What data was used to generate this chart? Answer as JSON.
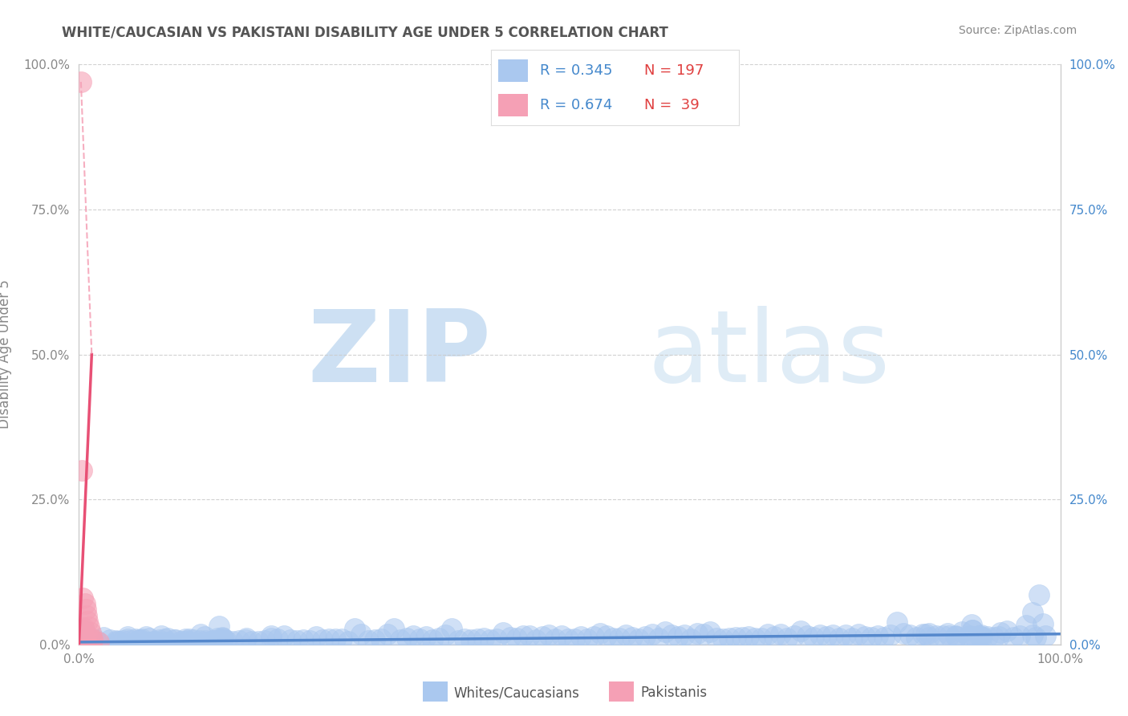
{
  "title": "WHITE/CAUCASIAN VS PAKISTANI DISABILITY AGE UNDER 5 CORRELATION CHART",
  "source": "Source: ZipAtlas.com",
  "ylabel": "Disability Age Under 5",
  "xlim": [
    0,
    1.0
  ],
  "ylim": [
    0,
    1.0
  ],
  "xticks": [
    0.0,
    1.0
  ],
  "yticks": [
    0.0,
    0.25,
    0.5,
    0.75,
    1.0
  ],
  "xtick_labels_bottom": [
    "0.0%",
    "100.0%"
  ],
  "ytick_labels_left": [
    "0.0%",
    "25.0%",
    "50.0%",
    "75.0%",
    "100.0%"
  ],
  "ytick_labels_right": [
    "0.0%",
    "25.0%",
    "50.0%",
    "75.0%",
    "100.0%"
  ],
  "white_R": 0.345,
  "white_N": 197,
  "pak_R": 0.674,
  "pak_N": 39,
  "white_color": "#aac8ef",
  "pak_color": "#f5a0b5",
  "legend_label_white": "Whites/Caucasians",
  "legend_label_pak": "Pakistanis",
  "watermark_zip": "ZIP",
  "watermark_atlas": "atlas",
  "watermark_color": "#c8dff5",
  "background_color": "#ffffff",
  "grid_color": "#cccccc",
  "title_color": "#555555",
  "right_tick_color": "#4488cc",
  "left_tick_color": "#888888",
  "source_color": "#888888",
  "trend_white_color": "#5588cc",
  "trend_pak_color": "#e85075",
  "trend_pak_dashed_color": "#f5a0b5"
}
